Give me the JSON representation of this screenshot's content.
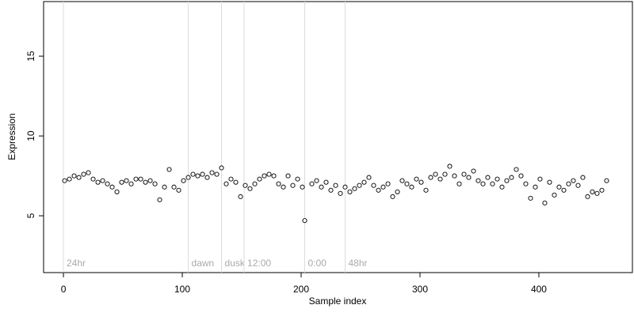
{
  "chart_data": {
    "type": "scatter",
    "xlabel": "Sample index",
    "ylabel": "Expression",
    "x": [
      1,
      5,
      9,
      13,
      17,
      21,
      25,
      29,
      33,
      37,
      41,
      45,
      49,
      53,
      57,
      61,
      65,
      69,
      73,
      77,
      81,
      85,
      89,
      93,
      97,
      101,
      105,
      109,
      113,
      117,
      121,
      125,
      129,
      133,
      137,
      141,
      145,
      149,
      153,
      157,
      161,
      165,
      169,
      173,
      177,
      181,
      185,
      189,
      193,
      197,
      201,
      203,
      209,
      213,
      217,
      221,
      225,
      229,
      233,
      237,
      241,
      245,
      249,
      253,
      257,
      261,
      265,
      269,
      273,
      277,
      281,
      285,
      289,
      293,
      297,
      301,
      305,
      309,
      313,
      317,
      321,
      325,
      329,
      333,
      337,
      341,
      345,
      349,
      353,
      357,
      361,
      365,
      369,
      373,
      377,
      381,
      385,
      389,
      393,
      397,
      401,
      405,
      409,
      413,
      417,
      421,
      425,
      429,
      433,
      437,
      441,
      445,
      449,
      453,
      457
    ],
    "values": [
      7.2,
      7.3,
      7.5,
      7.4,
      7.6,
      7.7,
      7.3,
      7.1,
      7.2,
      7.0,
      6.8,
      6.5,
      7.1,
      7.2,
      7.0,
      7.3,
      7.3,
      7.1,
      7.2,
      7.0,
      6.0,
      6.8,
      7.9,
      6.8,
      6.6,
      7.2,
      7.4,
      7.6,
      7.5,
      7.6,
      7.4,
      7.7,
      7.6,
      8.0,
      7.0,
      7.3,
      7.1,
      6.2,
      6.9,
      6.7,
      7.0,
      7.3,
      7.5,
      7.6,
      7.5,
      7.0,
      6.8,
      7.5,
      6.9,
      7.3,
      6.8,
      4.7,
      7.0,
      7.2,
      6.8,
      7.1,
      6.6,
      6.9,
      6.4,
      6.8,
      6.5,
      6.7,
      6.9,
      7.1,
      7.4,
      6.9,
      6.6,
      6.8,
      7.0,
      6.2,
      6.5,
      7.2,
      7.0,
      6.8,
      7.3,
      7.1,
      6.6,
      7.4,
      7.6,
      7.3,
      7.6,
      8.1,
      7.5,
      7.0,
      7.6,
      7.4,
      7.8,
      7.2,
      7.0,
      7.4,
      7.0,
      7.3,
      6.8,
      7.2,
      7.4,
      7.9,
      7.5,
      7.0,
      6.1,
      6.8,
      7.3,
      5.8,
      7.1,
      6.3,
      6.8,
      6.6,
      7.0,
      7.2,
      6.9,
      7.4,
      6.2,
      6.5,
      6.4,
      6.6,
      7.2
    ],
    "color": "#ffffff",
    "edgecolor": "#000000",
    "annotations": [
      {
        "x": 0,
        "label": "24hr"
      },
      {
        "x": 105,
        "label": "dawn"
      },
      {
        "x": 133,
        "label": "dusk"
      },
      {
        "x": 152,
        "label": "12:00"
      },
      {
        "x": 203,
        "label": "0:00"
      },
      {
        "x": 237,
        "label": "48hr"
      }
    ],
    "xlim": [
      -16.7,
      478.7
    ],
    "ylim": [
      1.44,
      18.42
    ],
    "xticks": [
      0,
      100,
      200,
      300,
      400
    ],
    "yticks": [
      5,
      10,
      15
    ],
    "grid": false
  }
}
